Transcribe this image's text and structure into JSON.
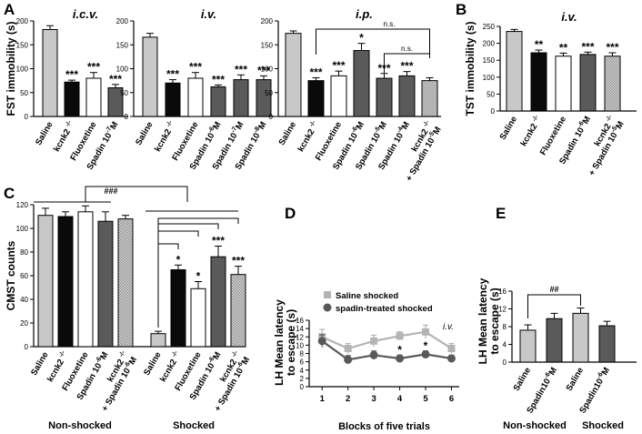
{
  "colors": {
    "saline": "#c8c8c8",
    "kcnk2": "#0a0a0a",
    "fluoxetine": "#ffffff",
    "spadin": "#5a5a5a",
    "combo": "#9a9a9a",
    "line_saline": "#b4b4b4",
    "line_spadin": "#595959"
  },
  "chart_data": [
    {
      "id": "A",
      "type": "bar",
      "letter": "A",
      "ylabel": "FST immobility (s)",
      "ylim": [
        0,
        200
      ],
      "yticks": [
        0,
        50,
        100,
        150,
        200
      ],
      "subpanels": [
        {
          "route": "i.c.v.",
          "categories": [
            "Saline",
            "kcnk2 -/-",
            "Fluoxetine",
            "Spadin 10-7M"
          ],
          "values": [
            182,
            72,
            80,
            60
          ],
          "errors": [
            8,
            4,
            12,
            7
          ],
          "fills": [
            "saline",
            "kcnk2",
            "fluoxetine",
            "spadin"
          ],
          "stars": [
            "",
            "***",
            "***",
            "***"
          ]
        },
        {
          "route": "i.v.",
          "categories": [
            "Saline",
            "kcnk2 -/-",
            "Fluoxetine",
            "Spadin 10-6M",
            "Spadin 10-7M",
            "Spadin 10-8M"
          ],
          "values": [
            166,
            70,
            80,
            62,
            77,
            77
          ],
          "errors": [
            8,
            7,
            12,
            4,
            10,
            8
          ],
          "fills": [
            "saline",
            "kcnk2",
            "fluoxetine",
            "spadin",
            "spadin",
            "spadin"
          ],
          "stars": [
            "",
            "***",
            "***",
            "***",
            "***",
            "***"
          ]
        },
        {
          "route": "i.p.",
          "categories": [
            "Saline",
            "kcnk2 -/-",
            "Fluoxetine",
            "Spadin 10-6M",
            "Spadin 10-5M",
            "Spadin 10-4M",
            "kcnk2 -/- + Spadin 10-5M"
          ],
          "values": [
            174,
            75,
            85,
            138,
            80,
            85,
            75
          ],
          "errors": [
            5,
            6,
            10,
            15,
            10,
            9,
            6
          ],
          "fills": [
            "saline",
            "kcnk2",
            "fluoxetine",
            "spadin",
            "spadin",
            "spadin",
            "combo"
          ],
          "stars": [
            "",
            "***",
            "***",
            "*",
            "***",
            "***",
            ""
          ],
          "brackets": [
            {
              "from": 1,
              "to": 6,
              "label": "n.s."
            },
            {
              "from": 4,
              "to": 6,
              "label": "n.s."
            }
          ]
        }
      ]
    },
    {
      "id": "B",
      "type": "bar",
      "letter": "B",
      "route": "i.v.",
      "ylabel": "TST immobility (s)",
      "ylim": [
        0,
        250
      ],
      "yticks": [
        0,
        50,
        100,
        150,
        200,
        250
      ],
      "categories": [
        "Saline",
        "kcnk2 -/-",
        "Fluoxetine",
        "Spadin 10-6M",
        "kcnk2 -/- + Spadin 10-5M"
      ],
      "values": [
        235,
        172,
        162,
        167,
        162
      ],
      "errors": [
        6,
        8,
        9,
        7,
        10
      ],
      "fills": [
        "saline",
        "kcnk2",
        "fluoxetine",
        "spadin",
        "combo"
      ],
      "stars": [
        "",
        "**",
        "**",
        "***",
        "***"
      ]
    },
    {
      "id": "C",
      "type": "bar",
      "letter": "C",
      "ylabel": "CMST counts",
      "ylim": [
        0,
        120
      ],
      "yticks": [
        0,
        20,
        40,
        60,
        80,
        100,
        120
      ],
      "group_labels": [
        "Non-shocked",
        "Shocked"
      ],
      "top_bracket_label": "###",
      "groups": [
        {
          "categories": [
            "Saline",
            "kcnk2 -/-",
            "Fluoxetine",
            "Spadin 10-6M",
            "kcnk2 -/- + Spadin 10-6M"
          ],
          "values": [
            111,
            110,
            114,
            106,
            108
          ],
          "errors": [
            6,
            4,
            5,
            8,
            3
          ],
          "fills": [
            "saline",
            "kcnk2",
            "fluoxetine",
            "spadin",
            "combo"
          ],
          "stars": [
            "",
            "",
            "",
            "",
            ""
          ]
        },
        {
          "categories": [
            "Saline",
            "kcnk2 -/-",
            "Fluoxetine",
            "Spadin 10-6M",
            "kcnk2 -/- + Spadin 10-6M"
          ],
          "values": [
            11,
            65,
            49,
            76,
            61
          ],
          "errors": [
            2,
            4,
            6,
            9,
            7
          ],
          "fills": [
            "saline",
            "kcnk2",
            "fluoxetine",
            "spadin",
            "combo"
          ],
          "stars": [
            "",
            "*",
            "*",
            "***",
            "***"
          ]
        }
      ]
    },
    {
      "id": "D",
      "type": "line",
      "letter": "D",
      "route": "i.v.",
      "ylabel": "LH Mean latency to escape (s)",
      "xlabel": "Blocks of five trials",
      "ylim": [
        0,
        16
      ],
      "yticks": [
        0,
        2,
        4,
        6,
        8,
        10,
        12,
        14,
        16
      ],
      "x": [
        1,
        2,
        3,
        4,
        5,
        6
      ],
      "series": [
        {
          "name": "Saline shocked",
          "color": "line_saline",
          "marker": "square",
          "values": [
            12,
            9.2,
            11,
            12.2,
            13.2,
            9.2
          ],
          "errors": [
            1.8,
            1.2,
            1.4,
            1.0,
            1.6,
            1.2
          ]
        },
        {
          "name": "spadin-treated shocked",
          "color": "line_spadin",
          "marker": "circle",
          "values": [
            11,
            6.5,
            7.6,
            6.8,
            7.8,
            6.8
          ],
          "errors": [
            1.5,
            1.0,
            1.0,
            0.8,
            0.8,
            0.8
          ]
        }
      ],
      "stars": [
        {
          "x": 4,
          "label": "*"
        },
        {
          "x": 5,
          "label": "*"
        }
      ]
    },
    {
      "id": "E",
      "type": "bar",
      "letter": "E",
      "ylabel": "LH Mean latency to escape (s)",
      "ylim": [
        0,
        16
      ],
      "yticks": [
        0,
        4,
        8,
        12,
        16
      ],
      "group_labels": [
        "Non-shocked",
        "Shocked"
      ],
      "bracket_label": "##",
      "categories": [
        "Saline",
        "Spadin10-6M",
        "Saline",
        "Spadin10-6M"
      ],
      "values": [
        7.2,
        9.8,
        11,
        8.2
      ],
      "errors": [
        1.2,
        1.2,
        1.2,
        1.0
      ],
      "fills": [
        "saline",
        "spadin",
        "saline",
        "spadin"
      ]
    }
  ]
}
